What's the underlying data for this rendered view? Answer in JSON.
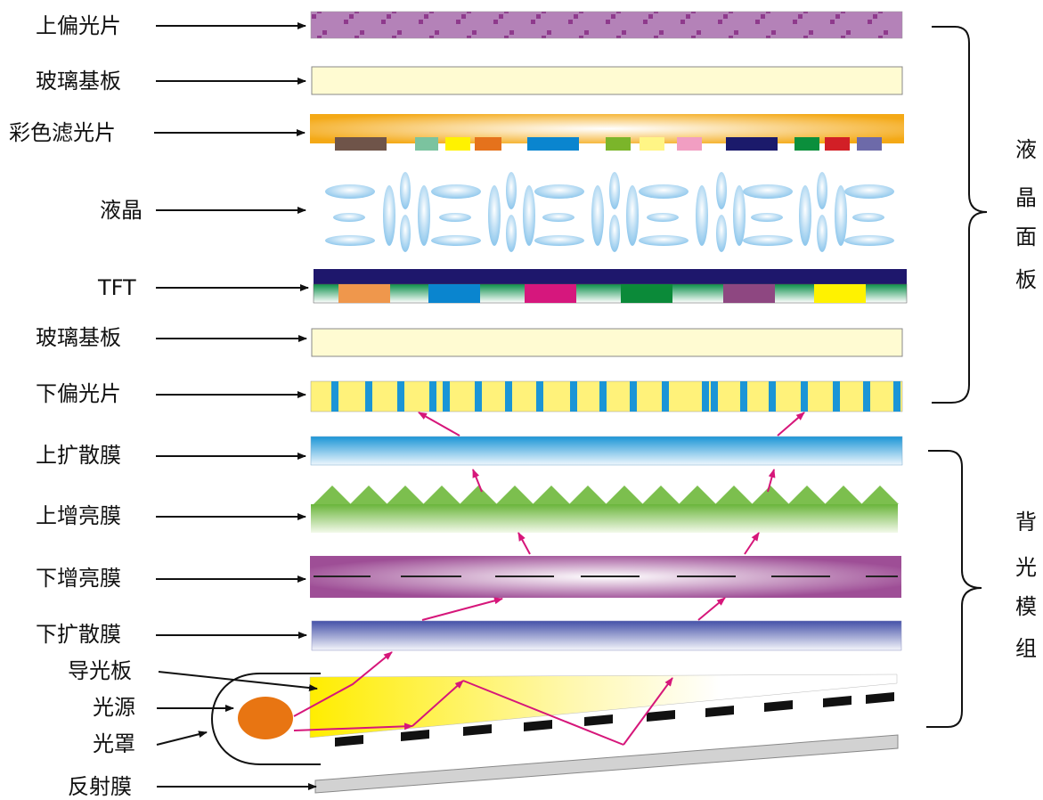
{
  "labels": {
    "upper_polarizer": "上偏光片",
    "glass_substrate_top": "玻璃基板",
    "color_filter": "彩色滤光片",
    "liquid_crystal": "液晶",
    "tft": "TFT",
    "glass_substrate_bottom": "玻璃基板",
    "lower_polarizer": "下偏光片",
    "upper_diffuser": "上扩散膜",
    "upper_brightness_film": "上增亮膜",
    "lower_brightness_film": "下增亮膜",
    "lower_diffuser": "下扩散膜",
    "light_guide_plate": "导光板",
    "light_source": "光源",
    "lamp_cover": "光罩",
    "reflector": "反射膜"
  },
  "groups": {
    "lcd_panel": [
      "液",
      "晶",
      "面",
      "板"
    ],
    "backlight_module": [
      "背",
      "光",
      "模",
      "组"
    ]
  },
  "colors": {
    "polarizer_top": "#b482b8",
    "glass": "#fffbd2",
    "filter_gold": "#f3b21c",
    "lc_blue": "#a9d4f0",
    "tft_navy": "#1e176c",
    "polarizer_bottom_yellow": "#fff27a",
    "polarizer_bottom_stripe": "#1b95d6",
    "diffuser_blue": "#1c97da",
    "prism_green": "#6ab53b",
    "bef_magenta": "#9e4e96",
    "lower_diffuser_blue": "#4451a8",
    "lgp_yellow": "#ffed00",
    "lamp_orange": "#e87512",
    "arrow_pink": "#d6167a",
    "reflector_gray": "#d2d2d2"
  },
  "color_filter_swatches": [
    "#6f5449",
    "#7bc39f",
    "#fff200",
    "#e5721c",
    "#0a85cf",
    "#7bb52a",
    "#fff585",
    "#f19ec2",
    "#1b1a6b",
    "#0b8f3c",
    "#d21f26",
    "#6d6aa9"
  ],
  "tft_swatches": [
    "#ef974c",
    "#0a85cf",
    "#d6177d",
    "#0b8a39",
    "#8e4781",
    "#fff200"
  ]
}
